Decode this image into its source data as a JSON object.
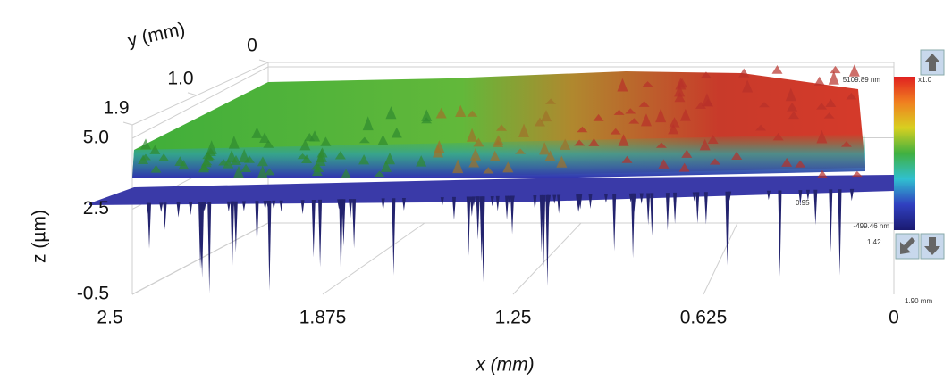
{
  "chart_data": {
    "type": "surface",
    "x_label": "x (mm)",
    "y_label": "y (mm)",
    "z_label": "z (µm)",
    "xlim": [
      2.5,
      0
    ],
    "xticks": [
      2.5,
      1.875,
      1.25,
      0.625,
      0
    ],
    "ylim": [
      0,
      1.9
    ],
    "yticks": [
      0,
      {
        "value": 1.0,
        "label": "1.0"
      },
      1.9
    ],
    "zlim": [
      -0.5,
      5.0
    ],
    "zticks": [
      -0.5,
      2.5,
      {
        "value": 5.0,
        "label": "5.0"
      }
    ],
    "colorbar": {
      "max_label": "5109.89 nm",
      "min_label": "-499.46 nm",
      "scale_label": "x1.0",
      "colors": [
        "#e02020",
        "#f08020",
        "#d8d020",
        "#40b040",
        "#30c0d0",
        "#3040c0",
        "#1a1a70"
      ]
    },
    "side_labels": [
      "1.90 mm",
      "0.95",
      "1.42"
    ]
  }
}
